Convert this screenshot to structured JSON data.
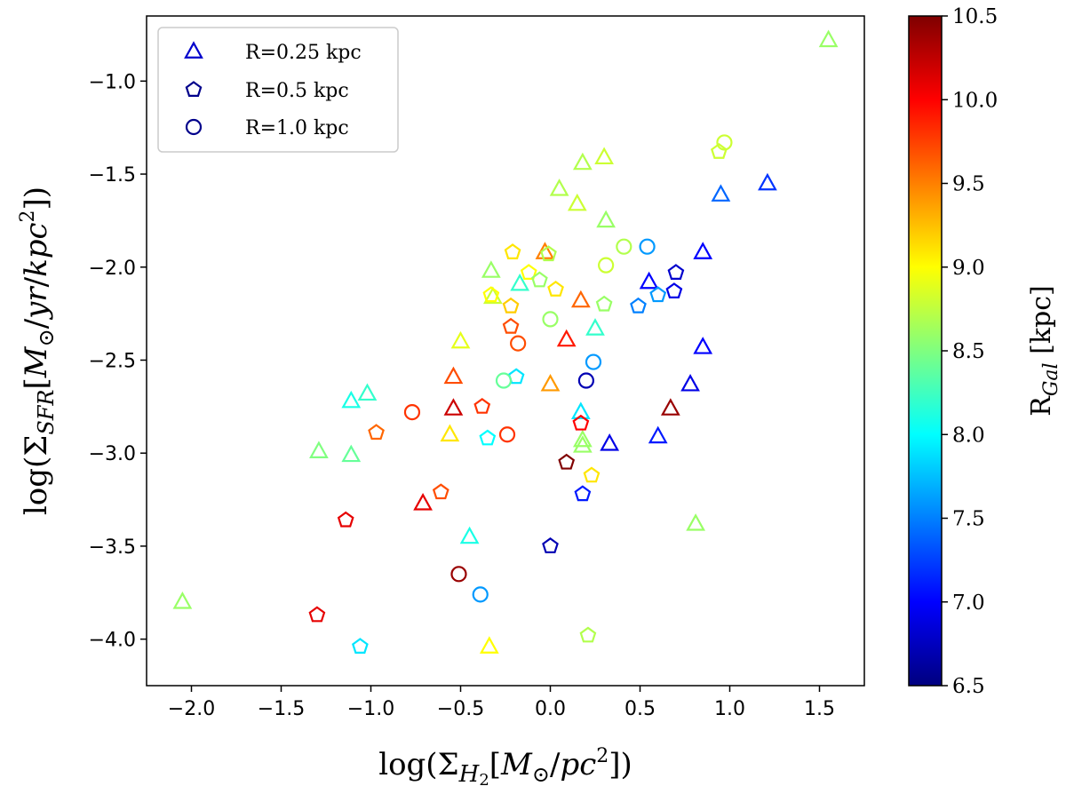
{
  "chart_data": {
    "type": "scatter",
    "title": "",
    "xlabel": "log(Σ_H2[M⊙/pc²])",
    "ylabel": "log(Σ_SFR[M⊙/yr/kpc²])",
    "xlim": [
      -2.25,
      1.75
    ],
    "ylim": [
      -4.25,
      -0.65
    ],
    "x_ticks": [
      -2.0,
      -1.5,
      -1.0,
      -0.5,
      0.0,
      0.5,
      1.0,
      1.5
    ],
    "x_tick_labels": [
      "−2.0",
      "−1.5",
      "−1.0",
      "−0.5",
      "0.0",
      "0.5",
      "1.0",
      "1.5"
    ],
    "y_ticks": [
      -1.0,
      -1.5,
      -2.0,
      -2.5,
      -3.0,
      -3.5,
      -4.0
    ],
    "y_tick_labels": [
      "−1.0",
      "−1.5",
      "−2.0",
      "−2.5",
      "−3.0",
      "−3.5",
      "−4.0"
    ],
    "grid": false,
    "legend_position": "top-left",
    "colorbar": {
      "label": "R_Gal [kpc]",
      "label_main": "R",
      "label_sub": "Gal",
      "label_unit": " [kpc]",
      "colormap": "jet",
      "vmin": 6.5,
      "vmax": 10.5,
      "ticks": [
        6.5,
        7.0,
        7.5,
        8.0,
        8.5,
        9.0,
        9.5,
        10.0,
        10.5
      ],
      "tick_labels": [
        "6.5",
        "7.0",
        "7.5",
        "8.0",
        "8.5",
        "9.0",
        "9.5",
        "10.0",
        "10.5"
      ]
    },
    "series": [
      {
        "name": "R=0.25 kpc",
        "marker": "triangle",
        "legend_color": "#0000cc",
        "points": [
          [
            1.55,
            -0.78,
            8.6
          ],
          [
            0.3,
            -1.41,
            8.8
          ],
          [
            0.18,
            -1.44,
            8.7
          ],
          [
            0.05,
            -1.58,
            8.7
          ],
          [
            0.15,
            -1.66,
            8.8
          ],
          [
            0.31,
            -1.75,
            8.6
          ],
          [
            1.21,
            -1.55,
            7.2
          ],
          [
            0.95,
            -1.61,
            7.4
          ],
          [
            0.85,
            -1.92,
            7.0
          ],
          [
            0.55,
            -2.08,
            7.0
          ],
          [
            0.85,
            -2.43,
            7.0
          ],
          [
            0.78,
            -2.63,
            6.9
          ],
          [
            0.6,
            -2.91,
            7.1
          ],
          [
            0.33,
            -2.95,
            6.9
          ],
          [
            -0.33,
            -2.02,
            8.6
          ],
          [
            -0.32,
            -2.16,
            8.8
          ],
          [
            -0.17,
            -2.09,
            8.2
          ],
          [
            -0.03,
            -1.92,
            9.5
          ],
          [
            -0.5,
            -2.4,
            8.9
          ],
          [
            -0.54,
            -2.59,
            9.7
          ],
          [
            0.17,
            -2.18,
            9.6
          ],
          [
            0.09,
            -2.39,
            9.9
          ],
          [
            0.25,
            -2.33,
            8.2
          ],
          [
            0.0,
            -2.63,
            9.4
          ],
          [
            -0.54,
            -2.76,
            10.2
          ],
          [
            -0.56,
            -2.9,
            9.1
          ],
          [
            -1.02,
            -2.68,
            8.2
          ],
          [
            -1.11,
            -2.72,
            8.1
          ],
          [
            -1.29,
            -2.99,
            8.5
          ],
          [
            -1.11,
            -3.01,
            8.4
          ],
          [
            -0.71,
            -3.27,
            10.1
          ],
          [
            -0.45,
            -3.45,
            8.1
          ],
          [
            0.17,
            -2.78,
            7.9
          ],
          [
            0.18,
            -2.93,
            8.6
          ],
          [
            0.18,
            -2.96,
            8.6
          ],
          [
            0.67,
            -2.76,
            10.4
          ],
          [
            0.81,
            -3.38,
            8.6
          ],
          [
            -2.05,
            -3.8,
            8.6
          ],
          [
            -0.34,
            -4.04,
            9.0
          ]
        ]
      },
      {
        "name": "R=0.5 kpc",
        "marker": "pentagon",
        "legend_color": "#00008b",
        "points": [
          [
            0.94,
            -1.38,
            8.8
          ],
          [
            -0.21,
            -1.92,
            9.1
          ],
          [
            -0.12,
            -2.03,
            9.0
          ],
          [
            -0.33,
            -2.15,
            9.0
          ],
          [
            -0.22,
            -2.21,
            9.2
          ],
          [
            0.03,
            -2.12,
            9.1
          ],
          [
            -0.06,
            -2.07,
            8.6
          ],
          [
            -0.01,
            -1.93,
            8.7
          ],
          [
            0.3,
            -2.2,
            8.6
          ],
          [
            0.7,
            -2.03,
            6.8
          ],
          [
            0.69,
            -2.13,
            6.9
          ],
          [
            0.49,
            -2.21,
            7.5
          ],
          [
            0.6,
            -2.15,
            7.6
          ],
          [
            -0.22,
            -2.32,
            9.7
          ],
          [
            -0.19,
            -2.59,
            7.9
          ],
          [
            -0.38,
            -2.75,
            9.8
          ],
          [
            -0.35,
            -2.92,
            8.0
          ],
          [
            -0.97,
            -2.89,
            9.6
          ],
          [
            -0.61,
            -3.21,
            9.7
          ],
          [
            -1.14,
            -3.36,
            10.1
          ],
          [
            0.09,
            -3.05,
            10.5
          ],
          [
            0.17,
            -2.84,
            10.0
          ],
          [
            0.23,
            -3.12,
            9.1
          ],
          [
            0.18,
            -3.22,
            7.1
          ],
          [
            0.0,
            -3.5,
            6.7
          ],
          [
            -1.3,
            -3.87,
            10.1
          ],
          [
            -1.06,
            -4.04,
            7.9
          ],
          [
            0.21,
            -3.98,
            8.7
          ]
        ]
      },
      {
        "name": "R=1.0 kpc",
        "marker": "circle",
        "legend_color": "#00008b",
        "points": [
          [
            0.97,
            -1.33,
            8.8
          ],
          [
            0.41,
            -1.89,
            8.7
          ],
          [
            0.31,
            -1.99,
            8.8
          ],
          [
            0.54,
            -1.89,
            7.6
          ],
          [
            0.0,
            -2.28,
            8.6
          ],
          [
            -0.18,
            -2.41,
            9.7
          ],
          [
            -0.26,
            -2.61,
            8.4
          ],
          [
            0.24,
            -2.51,
            7.6
          ],
          [
            0.2,
            -2.61,
            6.7
          ],
          [
            -0.77,
            -2.78,
            9.8
          ],
          [
            -0.24,
            -2.9,
            9.8
          ],
          [
            -0.51,
            -3.65,
            10.4
          ],
          [
            -0.39,
            -3.76,
            7.6
          ]
        ]
      }
    ]
  }
}
